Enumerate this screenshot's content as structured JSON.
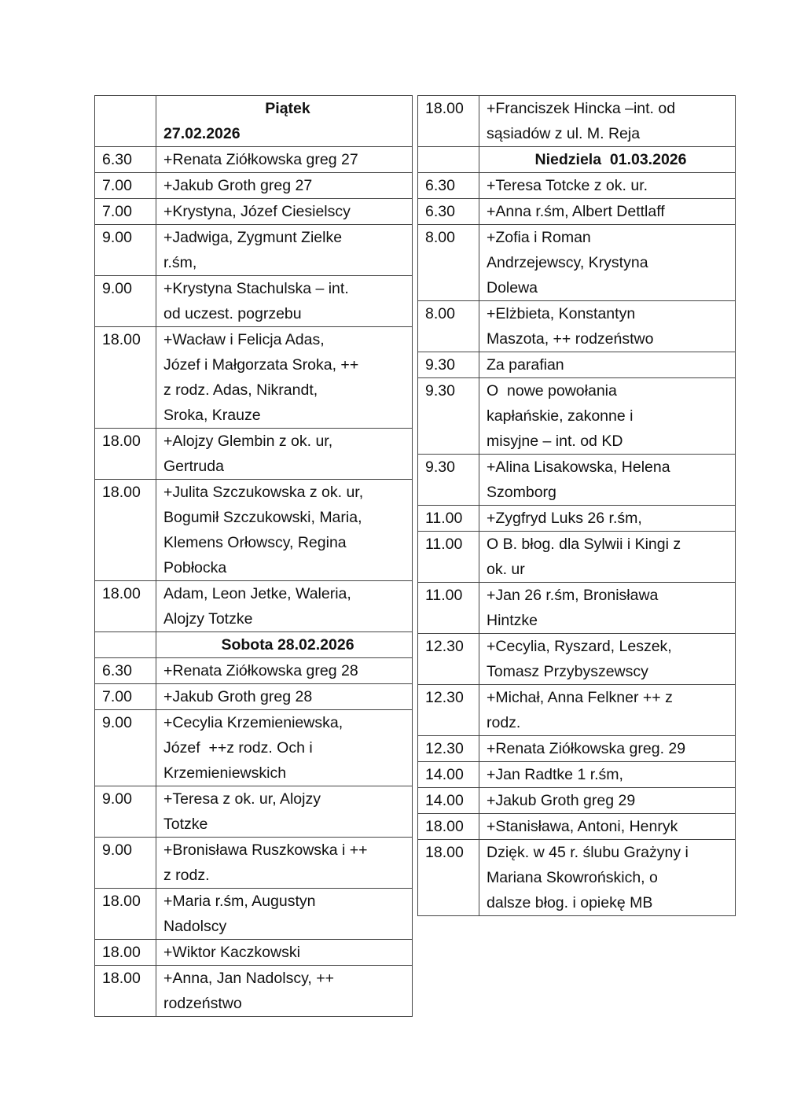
{
  "left_table": [
    {
      "header": "Piątek",
      "header_date": "27.02.2026"
    },
    {
      "time": "6.30",
      "text": "+Renata Ziółkowska greg 27"
    },
    {
      "time": "7.00",
      "text": "+Jakub Groth greg 27"
    },
    {
      "time": "7.00",
      "text": "+Krystyna, Józef Ciesielscy"
    },
    {
      "time": "9.00",
      "text": "+Jadwiga, Zygmunt Zielke\nr.śm,"
    },
    {
      "time": "9.00",
      "text": "+Krystyna Stachulska – int.\nod uczest. pogrzebu"
    },
    {
      "time": "18.00",
      "text": "+Wacław i Felicja Adas,\nJózef i Małgorzata Sroka, ++\nz rodz. Adas, Nikrandt,\nSroka, Krauze"
    },
    {
      "time": "18.00",
      "text": "+Alojzy Glembin z ok. ur,\nGertruda"
    },
    {
      "time": "18.00",
      "text": "+Julita Szczukowska z ok. ur,\nBogumił Szczukowski, Maria,\nKlemens Orłowscy, Regina\nPobłocka"
    },
    {
      "time": "18.00",
      "text": "Adam, Leon Jetke, Waleria,\nAlojzy Totzke"
    },
    {
      "header": "Sobota 28.02.2026"
    },
    {
      "time": "6.30",
      "text": "+Renata Ziółkowska greg 28"
    },
    {
      "time": "7.00",
      "text": "+Jakub Groth greg 28"
    },
    {
      "time": "9.00",
      "text": "+Cecylia Krzemieniewska,\nJózef  ++z rodz. Och i\nKrzemieniewskich"
    },
    {
      "time": "9.00",
      "text": "+Teresa z ok. ur, Alojzy\nTotzke"
    },
    {
      "time": "9.00",
      "text": "+Bronisława Ruszkowska i ++\nz rodz."
    },
    {
      "time": "18.00",
      "text": "+Maria r.śm, Augustyn\nNadolscy"
    },
    {
      "time": "18.00",
      "text": "+Wiktor Kaczkowski"
    },
    {
      "time": "18.00",
      "text": "+Anna, Jan Nadolscy, ++\nrodzeństwo"
    }
  ],
  "right_table": [
    {
      "time": "18.00",
      "text": "+Franciszek Hincka –int. od\nsąsiadów z ul. M. Reja"
    },
    {
      "header": "Niedziela  01.03.2026"
    },
    {
      "time": "6.30",
      "text": "+Teresa Totcke z ok. ur."
    },
    {
      "time": "6.30",
      "text": "+Anna r.śm, Albert Dettlaff"
    },
    {
      "time": "8.00",
      "text": "+Zofia i Roman\nAndrzejewscy, Krystyna\nDolewa"
    },
    {
      "time": "8.00",
      "text": "+Elżbieta, Konstantyn\nMaszota, ++ rodzeństwo"
    },
    {
      "time": "9.30",
      "text": "Za parafian"
    },
    {
      "time": "9.30",
      "text": "O  nowe powołania\nkapłańskie, zakonne i\nmisyjne – int. od KD"
    },
    {
      "time": "9.30",
      "text": "+Alina Lisakowska, Helena\nSzomborg"
    },
    {
      "time": "11.00",
      "text": "+Zygfryd Luks 26 r.śm,"
    },
    {
      "time": "11.00",
      "text": "O B. błog. dla Sylwii i Kingi z\nok. ur"
    },
    {
      "time": "11.00",
      "text": "+Jan 26 r.śm, Bronisława\nHintzke"
    },
    {
      "time": "12.30",
      "text": "+Cecylia, Ryszard, Leszek,\nTomasz Przybyszewscy"
    },
    {
      "time": "12.30",
      "text": "+Michał, Anna Felkner ++ z\nrodz."
    },
    {
      "time": "12.30",
      "text": "+Renata Ziółkowska greg. 29"
    },
    {
      "time": "14.00",
      "text": "+Jan Radtke 1 r.śm,"
    },
    {
      "time": "14.00",
      "text": "+Jakub Groth greg 29"
    },
    {
      "time": "18.00",
      "text": "+Stanisława, Antoni, Henryk"
    },
    {
      "time": "18.00",
      "text": "Dzięk. w 45 r. ślubu Grażyny i\nMariana Skowrońskich, o\ndalsze błog. i opiekę MB"
    }
  ]
}
